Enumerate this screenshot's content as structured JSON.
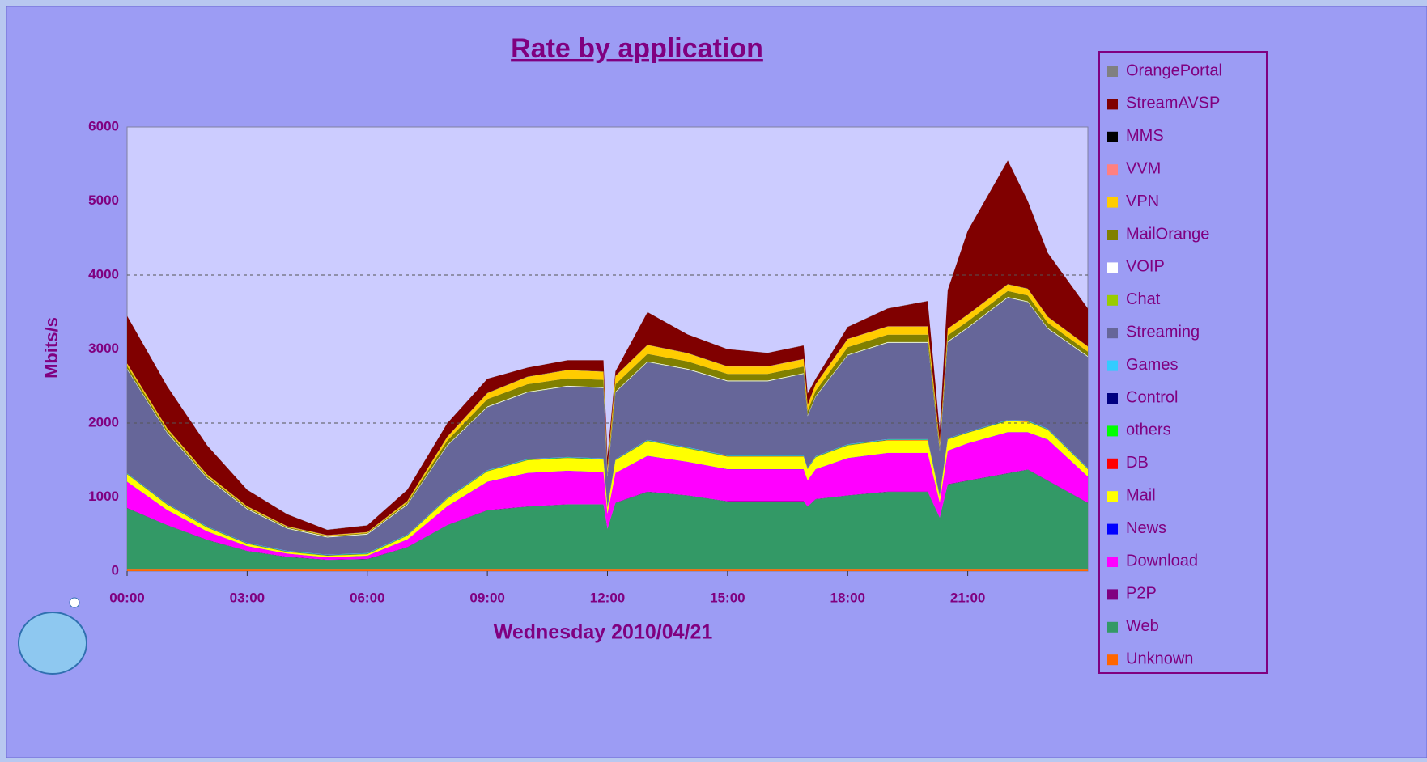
{
  "chart_data": {
    "type": "stacked_area",
    "title": "Rate by application",
    "x_label": "Wednesday 2010/04/21",
    "y_label": "Mbits/s",
    "x": [
      0,
      1,
      2,
      3,
      4,
      5,
      6,
      7,
      8,
      9,
      10,
      11,
      11.9,
      12,
      12.2,
      13,
      14,
      15,
      16,
      16.9,
      17,
      17.2,
      18,
      19,
      20,
      20.3,
      20.5,
      21,
      22,
      22.5,
      23,
      24
    ],
    "xlim": [
      0,
      24
    ],
    "xticks": [
      {
        "value": 0,
        "label": "00:00"
      },
      {
        "value": 3,
        "label": "03:00"
      },
      {
        "value": 6,
        "label": "06:00"
      },
      {
        "value": 9,
        "label": "09:00"
      },
      {
        "value": 12,
        "label": "12:00"
      },
      {
        "value": 15,
        "label": "15:00"
      },
      {
        "value": 18,
        "label": "18:00"
      },
      {
        "value": 21,
        "label": "21:00"
      }
    ],
    "ylim": [
      0,
      6000
    ],
    "yticks": [
      0,
      1000,
      2000,
      3000,
      4000,
      5000,
      6000
    ],
    "grid": true,
    "series": [
      {
        "name": "Unknown",
        "color": "#ff6600",
        "values": [
          20,
          20,
          20,
          20,
          20,
          20,
          20,
          20,
          20,
          20,
          20,
          20,
          20,
          20,
          20,
          20,
          20,
          20,
          20,
          20,
          20,
          20,
          20,
          20,
          20,
          20,
          20,
          20,
          20,
          20,
          20,
          20
        ]
      },
      {
        "name": "Web",
        "color": "#339966",
        "values": [
          830,
          600,
          400,
          250,
          170,
          130,
          140,
          300,
          600,
          800,
          850,
          880,
          880,
          550,
          900,
          1050,
          1000,
          920,
          920,
          920,
          850,
          950,
          1000,
          1050,
          1050,
          700,
          1150,
          1200,
          1300,
          1350,
          1200,
          900
        ]
      },
      {
        "name": "P2P",
        "color": "#800080",
        "values": [
          5,
          5,
          5,
          5,
          5,
          5,
          5,
          5,
          5,
          5,
          5,
          5,
          5,
          5,
          5,
          5,
          5,
          5,
          5,
          5,
          5,
          5,
          5,
          5,
          5,
          5,
          5,
          5,
          5,
          5,
          5,
          5
        ]
      },
      {
        "name": "Download",
        "color": "#ff00ff",
        "values": [
          350,
          200,
          110,
          60,
          40,
          30,
          40,
          100,
          250,
          380,
          450,
          450,
          430,
          200,
          400,
          480,
          450,
          430,
          430,
          430,
          350,
          400,
          500,
          520,
          520,
          200,
          450,
          500,
          550,
          500,
          550,
          350
        ]
      },
      {
        "name": "News",
        "color": "#0000ff",
        "values": [
          2,
          2,
          2,
          2,
          2,
          2,
          2,
          2,
          2,
          2,
          2,
          2,
          2,
          2,
          2,
          2,
          2,
          2,
          2,
          2,
          2,
          2,
          2,
          2,
          2,
          2,
          2,
          2,
          2,
          2,
          2,
          2
        ]
      },
      {
        "name": "Mail",
        "color": "#ffff00",
        "values": [
          100,
          70,
          50,
          30,
          20,
          20,
          20,
          50,
          100,
          140,
          170,
          170,
          170,
          80,
          170,
          200,
          180,
          170,
          170,
          170,
          150,
          160,
          170,
          170,
          170,
          80,
          150,
          140,
          150,
          140,
          130,
          100
        ]
      },
      {
        "name": "DB",
        "color": "#ff0000",
        "values": [
          3,
          3,
          3,
          3,
          3,
          3,
          3,
          3,
          3,
          3,
          3,
          3,
          3,
          3,
          3,
          3,
          3,
          3,
          3,
          3,
          3,
          3,
          3,
          3,
          3,
          3,
          3,
          3,
          3,
          3,
          3,
          3
        ]
      },
      {
        "name": "others",
        "color": "#00ff00",
        "values": [
          5,
          5,
          5,
          5,
          5,
          5,
          5,
          5,
          5,
          5,
          5,
          5,
          5,
          5,
          5,
          5,
          5,
          5,
          5,
          5,
          5,
          5,
          5,
          5,
          5,
          5,
          5,
          5,
          5,
          5,
          5,
          5
        ]
      },
      {
        "name": "Control",
        "color": "#000080",
        "values": [
          3,
          3,
          3,
          3,
          3,
          3,
          3,
          3,
          3,
          3,
          3,
          3,
          3,
          3,
          3,
          3,
          3,
          3,
          3,
          3,
          3,
          3,
          3,
          3,
          3,
          3,
          3,
          3,
          3,
          3,
          3,
          3
        ]
      },
      {
        "name": "Games",
        "color": "#33ccff",
        "values": [
          5,
          5,
          5,
          5,
          5,
          5,
          5,
          5,
          5,
          5,
          5,
          5,
          5,
          5,
          5,
          5,
          5,
          5,
          5,
          5,
          5,
          5,
          5,
          5,
          5,
          5,
          5,
          5,
          5,
          5,
          5,
          5
        ]
      },
      {
        "name": "Streaming",
        "color": "#666699",
        "values": [
          1400,
          950,
          650,
          450,
          300,
          230,
          250,
          400,
          700,
          850,
          900,
          950,
          950,
          400,
          900,
          1050,
          1050,
          1000,
          1000,
          1100,
          700,
          800,
          1200,
          1300,
          1300,
          600,
          1300,
          1400,
          1650,
          1600,
          1350,
          1500
        ]
      },
      {
        "name": "Chat",
        "color": "#99cc00",
        "values": [
          3,
          3,
          3,
          3,
          3,
          3,
          3,
          3,
          3,
          3,
          3,
          3,
          3,
          3,
          3,
          3,
          3,
          3,
          3,
          3,
          3,
          3,
          3,
          3,
          3,
          3,
          3,
          3,
          3,
          3,
          3,
          3
        ]
      },
      {
        "name": "VOIP",
        "color": "#ffffff",
        "values": [
          8,
          8,
          8,
          8,
          8,
          8,
          8,
          8,
          8,
          8,
          8,
          8,
          8,
          8,
          8,
          8,
          8,
          8,
          8,
          8,
          8,
          8,
          8,
          8,
          8,
          8,
          8,
          8,
          8,
          8,
          8,
          8
        ]
      },
      {
        "name": "MailOrange",
        "color": "#808000",
        "values": [
          40,
          30,
          20,
          15,
          10,
          10,
          10,
          20,
          60,
          100,
          100,
          100,
          100,
          50,
          100,
          100,
          100,
          90,
          90,
          90,
          60,
          70,
          100,
          100,
          100,
          50,
          80,
          80,
          80,
          80,
          70,
          60
        ]
      },
      {
        "name": "VPN",
        "color": "#ffcc00",
        "values": [
          30,
          25,
          20,
          15,
          10,
          10,
          10,
          20,
          50,
          80,
          100,
          110,
          110,
          50,
          110,
          120,
          110,
          100,
          100,
          100,
          80,
          90,
          110,
          110,
          110,
          50,
          90,
          90,
          90,
          90,
          80,
          70
        ]
      },
      {
        "name": "VVM",
        "color": "#ff8080",
        "values": [
          2,
          2,
          2,
          2,
          2,
          2,
          2,
          2,
          2,
          2,
          2,
          2,
          2,
          2,
          2,
          2,
          2,
          2,
          2,
          2,
          2,
          2,
          2,
          2,
          2,
          2,
          2,
          2,
          2,
          2,
          2,
          2
        ]
      },
      {
        "name": "MMS",
        "color": "#000000",
        "values": [
          2,
          2,
          2,
          2,
          2,
          2,
          2,
          2,
          2,
          2,
          2,
          2,
          2,
          2,
          2,
          2,
          2,
          2,
          2,
          2,
          2,
          2,
          2,
          2,
          2,
          2,
          2,
          2,
          2,
          2,
          2,
          2
        ]
      },
      {
        "name": "StreamAVSP",
        "color": "#800000",
        "values": [
          640,
          565,
          390,
          220,
          160,
          70,
          90,
          150,
          180,
          190,
          120,
          130,
          150,
          150,
          60,
          440,
          250,
          230,
          180,
          180,
          150,
          70,
          160,
          240,
          340,
          160,
          520,
          1130,
          1670,
          1180,
          860,
          510
        ]
      },
      {
        "name": "OrangePortal",
        "color": "#808080",
        "values": [
          2,
          2,
          2,
          2,
          2,
          2,
          2,
          2,
          2,
          2,
          2,
          2,
          2,
          2,
          2,
          2,
          2,
          2,
          2,
          2,
          2,
          2,
          2,
          2,
          2,
          2,
          2,
          2,
          2,
          2,
          2,
          2
        ]
      }
    ]
  }
}
